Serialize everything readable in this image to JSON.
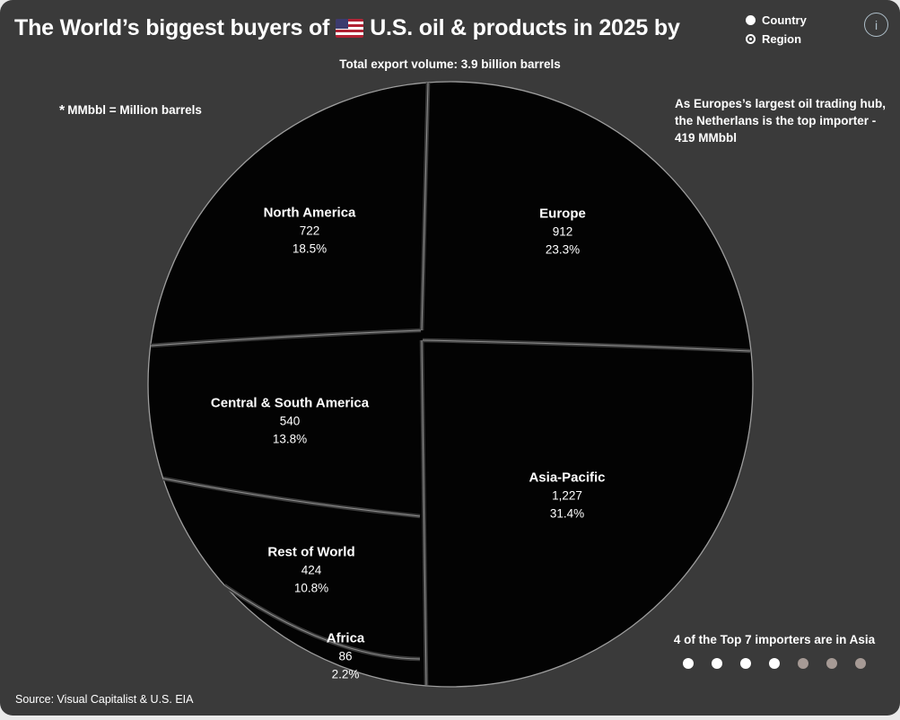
{
  "card_bg": "#3a3a3a",
  "header": {
    "title_prefix": "The World’s biggest buyers of",
    "title_suffix": "U.S. oil & products in 2025 by",
    "flag_icon": "us-flag",
    "radio": [
      {
        "label": "Country",
        "icon": "filled-circle",
        "selected": false
      },
      {
        "label": "Region",
        "icon": "ring-dot",
        "selected": true
      }
    ],
    "info_icon_glyph": "i"
  },
  "subtitle": "Total export volume: 3.9 billion barrels",
  "footnote": {
    "star": "*",
    "text": "MMbbl = Million barrels"
  },
  "annotation_right": {
    "line1": "As Europes’s largest oil trading hub,",
    "line2": "the Netherlans is the top importer -",
    "line3": "419 MMbbl"
  },
  "annotation_asia": {
    "text": "4 of the Top 7 importers are in Asia",
    "dots_total": 7,
    "dots_highlighted": 4,
    "dot_color_active": "#ffffff",
    "dot_color_muted": "#a69a95"
  },
  "source": "Source: Visual Capitalist & U.S. EIA",
  "chart_data": {
    "type": "pie",
    "variant": "circular-area-treemap",
    "title": "The World’s biggest buyers of U.S. oil & products in 2025 by Region",
    "total_label": "Total export volume: 3.9 billion barrels",
    "unit": "MMbbl (Million barrels)",
    "legend_position": "none",
    "colors": {
      "segment_fill": "#030303",
      "divider": "#3a3a3a",
      "outline": "#9e9e9e",
      "label": "#ffffff"
    },
    "series": [
      {
        "name": "North America",
        "value": 722,
        "value_label": "722",
        "pct_label": "18.5%"
      },
      {
        "name": "Europe",
        "value": 912,
        "value_label": "912",
        "pct_label": "23.3%"
      },
      {
        "name": "Central & South America",
        "value": 540,
        "value_label": "540",
        "pct_label": "13.8%"
      },
      {
        "name": "Asia-Pacific",
        "value": 1227,
        "value_label": "1,227",
        "pct_label": "31.4%"
      },
      {
        "name": "Rest of World",
        "value": 424,
        "value_label": "424",
        "pct_label": "10.8%"
      },
      {
        "name": "Africa",
        "value": 86,
        "value_label": "86",
        "pct_label": "2.2%"
      }
    ]
  }
}
